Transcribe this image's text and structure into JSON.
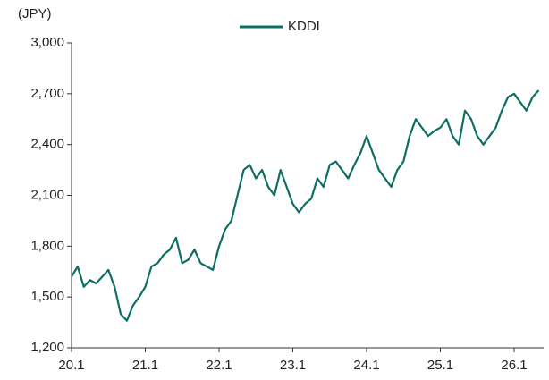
{
  "chart_data": {
    "type": "line",
    "y_label": "(JPY)",
    "categories": [
      "20.1",
      null,
      null,
      null,
      null,
      null,
      null,
      null,
      null,
      null,
      null,
      null,
      "21.1",
      null,
      null,
      null,
      null,
      null,
      null,
      null,
      null,
      null,
      null,
      null,
      "22.1",
      null,
      null,
      null,
      null,
      null,
      null,
      null,
      null,
      null,
      null,
      null,
      "23.1",
      null,
      null,
      null,
      null,
      null,
      null,
      null,
      null,
      null,
      null,
      null,
      "24.1",
      null,
      null,
      null,
      null,
      null,
      null,
      null,
      null,
      null,
      null,
      null,
      "25.1",
      null,
      null,
      null,
      null,
      null,
      null,
      null,
      null,
      null,
      null,
      null,
      "26.1",
      null,
      null,
      null,
      null
    ],
    "series": [
      {
        "name": "KDDI",
        "color": "#0f6e64",
        "values": [
          1620,
          1680,
          1560,
          1600,
          1580,
          1620,
          1660,
          1560,
          1400,
          1360,
          1450,
          1500,
          1560,
          1680,
          1700,
          1750,
          1780,
          1850,
          1700,
          1720,
          1780,
          1700,
          1680,
          1660,
          1800,
          1900,
          1950,
          2100,
          2250,
          2280,
          2200,
          2250,
          2150,
          2100,
          2250,
          2150,
          2050,
          2000,
          2050,
          2080,
          2200,
          2150,
          2280,
          2300,
          2250,
          2200,
          2280,
          2350,
          2450,
          2350,
          2250,
          2200,
          2150,
          2250,
          2300,
          2450,
          2550,
          2500,
          2450,
          2480,
          2500,
          2550,
          2450,
          2400,
          2600,
          2550,
          2450,
          2400,
          2450,
          2500,
          2600,
          2680,
          2700,
          2650,
          2600,
          2680,
          2720
        ]
      }
    ],
    "ylim": [
      1200,
      3000
    ],
    "yticks": [
      {
        "value": 1200,
        "label": "1,200"
      },
      {
        "value": 1500,
        "label": "1,500"
      },
      {
        "value": 1800,
        "label": "1,800"
      },
      {
        "value": 2100,
        "label": "2,100"
      },
      {
        "value": 2400,
        "label": "2,400"
      },
      {
        "value": 2700,
        "label": "2,700"
      },
      {
        "value": 3000,
        "label": "3,000"
      }
    ],
    "legend": "top"
  }
}
